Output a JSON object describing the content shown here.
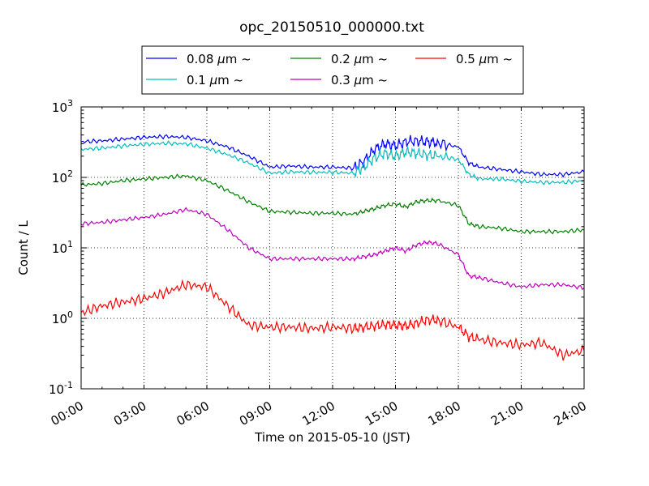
{
  "chart_data": {
    "type": "line",
    "title": "opc_20150510_000000.txt",
    "xlabel": "Time on 2015-05-10 (JST)",
    "ylabel": "Count / L",
    "xlim": [
      0,
      24
    ],
    "ylim": [
      0.1,
      1000
    ],
    "yscale": "log",
    "grid": true,
    "legend_position": "top",
    "x_tick_labels": [
      "00:00",
      "03:00",
      "06:00",
      "09:00",
      "12:00",
      "15:00",
      "18:00",
      "21:00",
      "24:00"
    ],
    "x_ticks": [
      0,
      3,
      6,
      9,
      12,
      15,
      18,
      21,
      24
    ],
    "y_tick_bases": [
      "10",
      "10",
      "10",
      "10",
      "10"
    ],
    "y_tick_exponents": [
      "-1",
      "0",
      "1",
      "2",
      "3"
    ],
    "y_ticks": [
      0.1,
      1,
      10,
      100,
      1000
    ],
    "x": [
      0,
      1,
      2,
      3,
      4,
      5,
      6,
      7,
      8,
      9,
      10,
      11,
      12,
      13,
      13.5,
      14,
      14.5,
      15,
      15.5,
      16,
      16.5,
      17,
      18,
      18.5,
      19,
      20,
      21,
      22,
      23,
      24
    ],
    "series": [
      {
        "name": "0.08 μm ~",
        "legend_label": "0.08",
        "color": "#0000ff",
        "values": [
          320,
          330,
          350,
          370,
          380,
          370,
          330,
          270,
          200,
          140,
          145,
          140,
          140,
          135,
          170,
          250,
          300,
          280,
          320,
          330,
          320,
          310,
          270,
          160,
          140,
          130,
          120,
          110,
          110,
          120
        ]
      },
      {
        "name": "0.1 μm ~",
        "legend_label": "0.1",
        "color": "#00bfbf",
        "values": [
          250,
          260,
          280,
          295,
          305,
          300,
          260,
          210,
          160,
          115,
          120,
          118,
          118,
          115,
          140,
          190,
          220,
          200,
          230,
          220,
          210,
          200,
          180,
          110,
          95,
          95,
          88,
          85,
          85,
          90
        ]
      },
      {
        "name": "0.2 μm ~",
        "legend_label": "0.2",
        "color": "#008000",
        "values": [
          78,
          82,
          90,
          95,
          100,
          105,
          90,
          65,
          45,
          33,
          32,
          31,
          31,
          30,
          33,
          36,
          40,
          42,
          38,
          45,
          47,
          47,
          40,
          22,
          20,
          19,
          17,
          17,
          17,
          18
        ]
      },
      {
        "name": "0.3 μm ~",
        "legend_label": "0.3",
        "color": "#bf00bf",
        "values": [
          22,
          23,
          25,
          27,
          30,
          35,
          30,
          18,
          10,
          7,
          7,
          7,
          7,
          7,
          7.5,
          8,
          9,
          10,
          9,
          11,
          12,
          11.5,
          8,
          4,
          3.8,
          3.2,
          2.8,
          3,
          3,
          2.7
        ]
      },
      {
        "name": "0.5 μm ~",
        "legend_label": "0.5",
        "color": "#ff0000",
        "values": [
          1.2,
          1.5,
          1.7,
          1.9,
          2.3,
          3,
          2.8,
          1.5,
          0.8,
          0.75,
          0.75,
          0.72,
          0.75,
          0.72,
          0.75,
          0.78,
          0.82,
          0.8,
          0.78,
          0.85,
          0.95,
          0.95,
          0.75,
          0.55,
          0.5,
          0.45,
          0.42,
          0.45,
          0.3,
          0.35
        ]
      }
    ]
  }
}
